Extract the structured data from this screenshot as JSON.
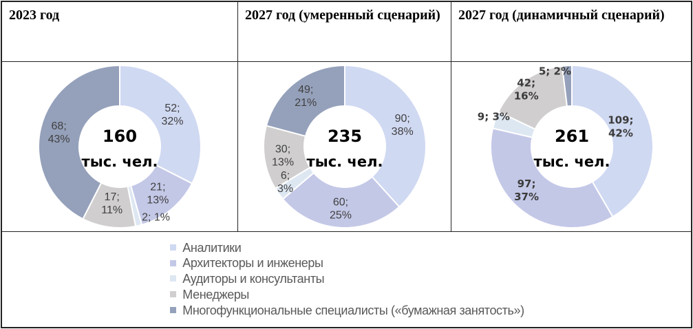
{
  "chart_data": [
    {
      "type": "pie",
      "title": "2023 год",
      "center_value": "160",
      "center_unit": "тыс. чел.",
      "categories": [
        "Аналитики",
        "Архитекторы и инженеры",
        "Аудиторы и консультанты",
        "Менеджеры",
        "Многофункциональные специалисты («бумажная занятость»)"
      ],
      "values": [
        52,
        21,
        2,
        17,
        68
      ],
      "percents": [
        32,
        13,
        1,
        11,
        43
      ],
      "labels": [
        [
          "52;",
          "32%"
        ],
        [
          "21;",
          "13%"
        ],
        [
          "2; 1%"
        ],
        [
          "17;",
          "11%"
        ],
        [
          "68;",
          "43%"
        ]
      ]
    },
    {
      "type": "pie",
      "title": "2027 год (умеренный сценарий)",
      "center_value": "235",
      "center_unit": "тыс. чел.",
      "categories": [
        "Аналитики",
        "Архитекторы и инженеры",
        "Аудиторы и консультанты",
        "Менеджеры",
        "Многофункциональные специалисты («бумажная занятость»)"
      ],
      "values": [
        90,
        60,
        6,
        30,
        49
      ],
      "percents": [
        38,
        25,
        3,
        13,
        21
      ],
      "labels": [
        [
          "90;",
          "38%"
        ],
        [
          "60;",
          "25%"
        ],
        [
          "6;",
          "3%"
        ],
        [
          "30;",
          "13%"
        ],
        [
          "49;",
          "21%"
        ]
      ]
    },
    {
      "type": "pie",
      "title": "2027 год (динамичный сценарий)",
      "center_value": "261",
      "center_unit": "тыс. чел.",
      "categories": [
        "Аналитики",
        "Архитекторы и инженеры",
        "Аудиторы и консультанты",
        "Менеджеры",
        "Многофункциональные специалисты («бумажная занятость»)"
      ],
      "values": [
        109,
        97,
        9,
        42,
        5
      ],
      "percents": [
        42,
        37,
        3,
        16,
        2
      ],
      "labels": [
        [
          "109;",
          "42%"
        ],
        [
          "97;",
          "37%"
        ],
        [
          "9; 3%"
        ],
        [
          "42;",
          "16%"
        ],
        [
          "5; 2%"
        ]
      ]
    }
  ],
  "legend": {
    "items": [
      {
        "label": "Аналитики",
        "color": "#d0d9f2"
      },
      {
        "label": "Архитекторы и инженеры",
        "color": "#c4c8e7"
      },
      {
        "label": "Аудиторы и консультанты",
        "color": "#dde7f2"
      },
      {
        "label": "Менеджеры",
        "color": "#d0cece"
      },
      {
        "label": "Многофункциональные специалисты («бумажная занятость»)",
        "color": "#95a1bb"
      }
    ]
  }
}
